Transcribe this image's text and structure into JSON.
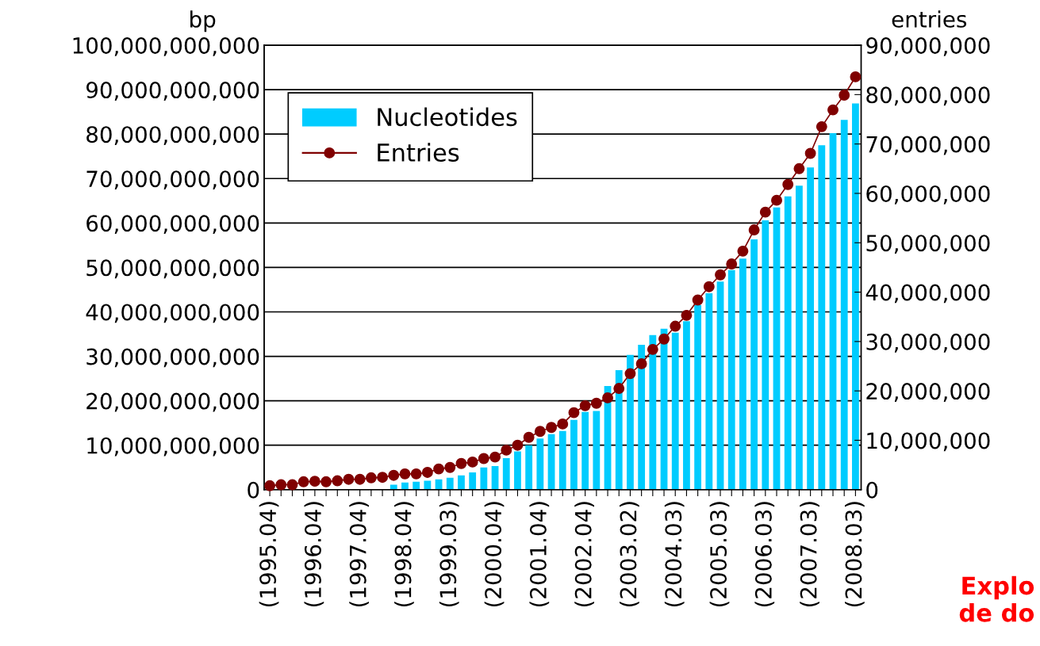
{
  "chart_data": {
    "type": "bar",
    "categories": [
      "(1995.04)",
      null,
      null,
      null,
      "(1996.04)",
      null,
      null,
      null,
      "(1997.04)",
      null,
      null,
      null,
      "(1998.04)",
      null,
      null,
      null,
      "(1999.03)",
      null,
      null,
      null,
      "(2000.04)",
      null,
      null,
      null,
      "(2001.04)",
      null,
      null,
      null,
      "(2002.04)",
      null,
      null,
      null,
      "(2003.02)",
      null,
      null,
      null,
      "(2004.03)",
      null,
      null,
      null,
      "(2005.03)",
      null,
      null,
      null,
      "(2006.03)",
      null,
      null,
      null,
      "(2007.03)",
      null,
      null,
      null,
      "(2008.03)"
    ],
    "series": [
      {
        "name": "Nucleotides",
        "color": "#00ccff",
        "values": [
          null,
          null,
          null,
          null,
          null,
          null,
          null,
          null,
          null,
          null,
          null,
          1100000000,
          1600000000,
          1800000000,
          2000000000,
          2300000000,
          2700000000,
          3200000000,
          3900000000,
          5000000000,
          5300000000,
          7100000000,
          8600000000,
          10000000000,
          11500000000,
          12500000000,
          13200000000,
          15700000000,
          17500000000,
          17700000000,
          23300000000,
          26900000000,
          30300000000,
          32600000000,
          34800000000,
          36200000000,
          35300000000,
          37900000000,
          41500000000,
          44200000000,
          46800000000,
          49400000000,
          52000000000,
          56300000000,
          60600000000,
          63500000000,
          66000000000,
          68400000000,
          72500000000,
          77500000000,
          80200000000,
          83200000000,
          86900000000
        ]
      },
      {
        "name": "Entries",
        "type": "line",
        "axis": "y2",
        "color": "#800000",
        "marker": "circle",
        "line_style": "solid",
        "values": [
          800000,
          1000000,
          1000000,
          1600000,
          1700000,
          1600000,
          1800000,
          2100000,
          2100000,
          2400000,
          2500000,
          2900000,
          3200000,
          3200000,
          3500000,
          4200000,
          4500000,
          5300000,
          5600000,
          6300000,
          6600000,
          8000000,
          9000000,
          10600000,
          11800000,
          12600000,
          13300000,
          15600000,
          17000000,
          17500000,
          18600000,
          20500000,
          23500000,
          25500000,
          28400000,
          30500000,
          33100000,
          35300000,
          38400000,
          41100000,
          43500000,
          45700000,
          48300000,
          52600000,
          56200000,
          58600000,
          61800000,
          65000000,
          68100000,
          73500000,
          76900000,
          79900000,
          83600000
        ]
      }
    ],
    "ylabel": "bp",
    "y2label": "entries",
    "ylim": [
      0,
      100000000000
    ],
    "yticks": [
      0,
      {
        "value": 10000000000,
        "label": "10,000,000,000"
      },
      {
        "value": 20000000000,
        "label": "20,000,000,000"
      },
      {
        "value": 30000000000,
        "label": "30,000,000,000"
      },
      {
        "value": 40000000000,
        "label": "40,000,000,000"
      },
      {
        "value": 50000000000,
        "label": "50,000,000,000"
      },
      {
        "value": 60000000000,
        "label": "60,000,000,000"
      },
      {
        "value": 70000000000,
        "label": "70,000,000,000"
      },
      {
        "value": 80000000000,
        "label": "80,000,000,000"
      },
      {
        "value": 90000000000,
        "label": "90,000,000,000"
      },
      {
        "value": 100000000000,
        "label": "100,000,000,000"
      }
    ],
    "y2lim": [
      0,
      90000000
    ],
    "y2ticks": [
      0,
      {
        "value": 10000000,
        "label": "10,000,000"
      },
      {
        "value": 20000000,
        "label": "20,000,000"
      },
      {
        "value": 30000000,
        "label": "30,000,000"
      },
      {
        "value": 40000000,
        "label": "40,000,000"
      },
      {
        "value": 50000000,
        "label": "50,000,000"
      },
      {
        "value": 60000000,
        "label": "60,000,000"
      },
      {
        "value": 70000000,
        "label": "70,000,000"
      },
      {
        "value": 80000000,
        "label": "80,000,000"
      },
      {
        "value": 90000000,
        "label": "90,000,000"
      }
    ],
    "grid": "y",
    "legend": "top left",
    "annotations": [
      "Explo\nde do"
    ]
  }
}
